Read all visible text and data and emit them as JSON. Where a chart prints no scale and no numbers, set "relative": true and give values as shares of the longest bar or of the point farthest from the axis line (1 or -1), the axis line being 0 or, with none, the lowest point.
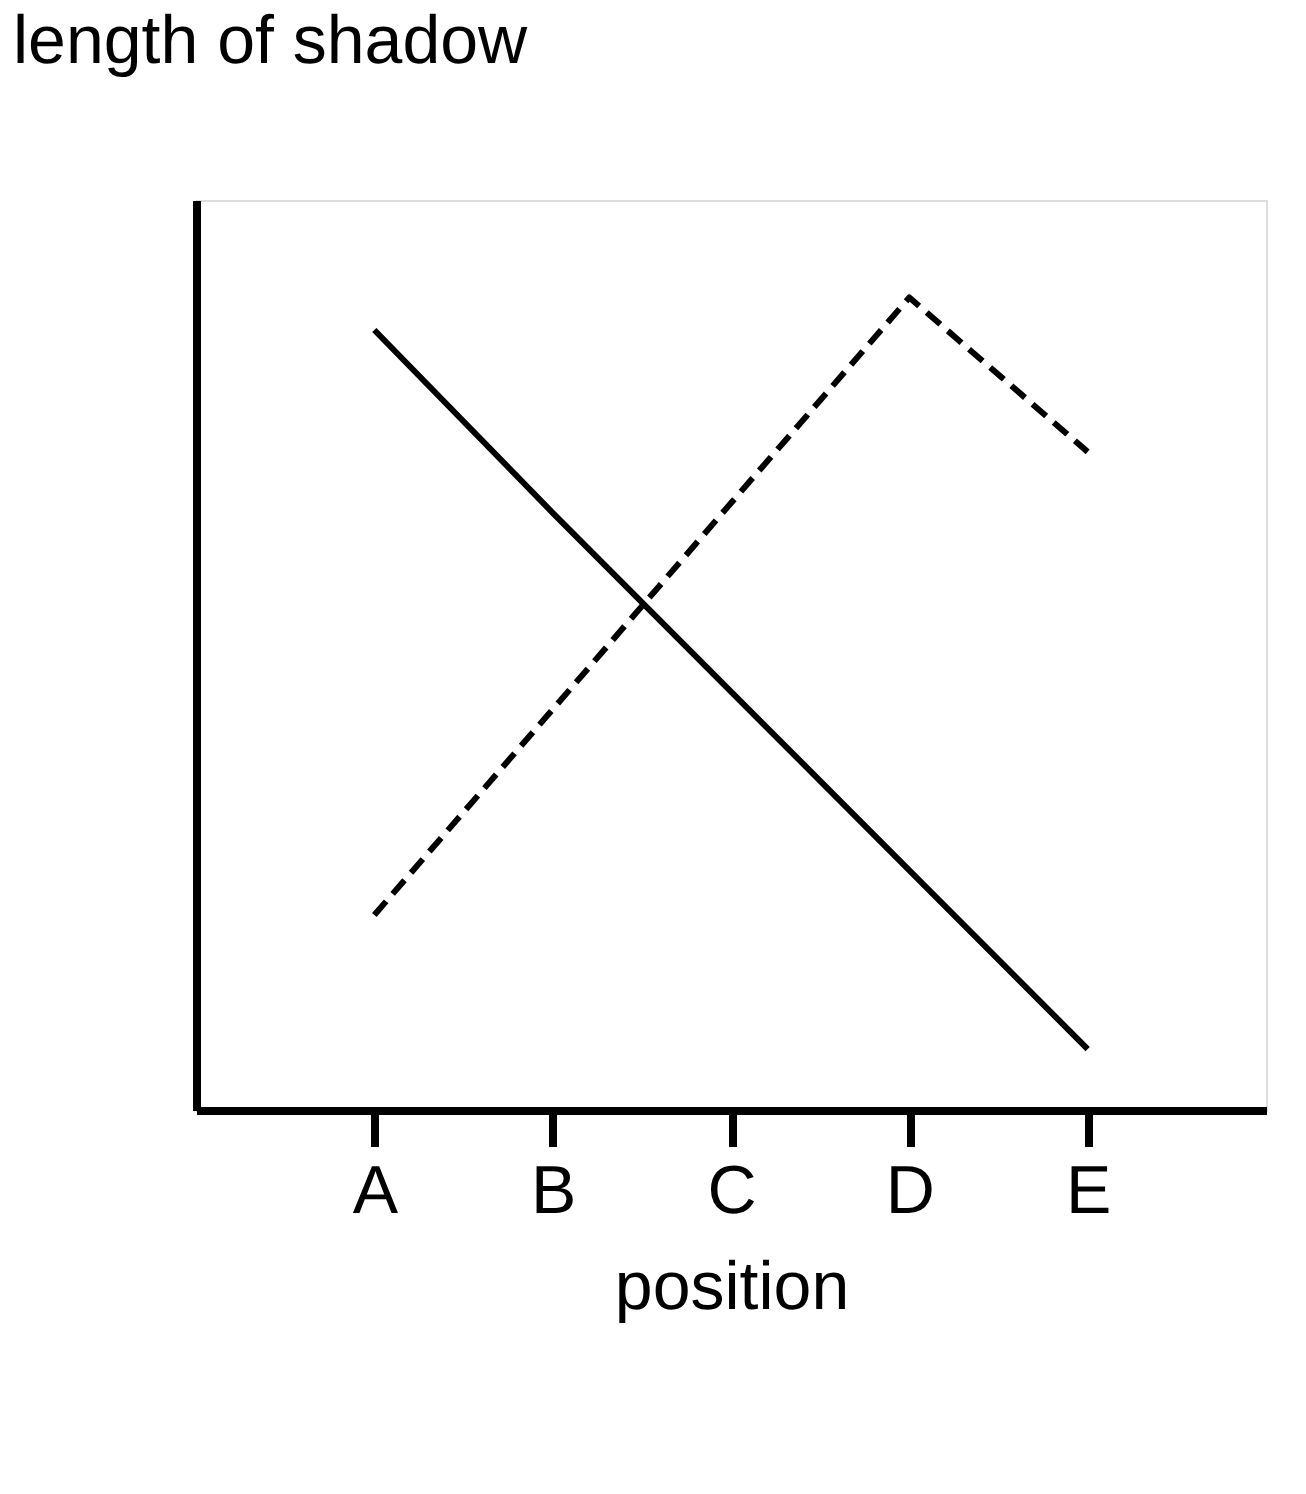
{
  "chart_data": {
    "type": "line",
    "relative": true,
    "ylabel": "length of shadow",
    "xlabel": "position",
    "categories": [
      "A",
      "B",
      "C",
      "D",
      "E"
    ],
    "grid": false,
    "marker": "none",
    "series": [
      {
        "color": "#000000",
        "line_style": "solid",
        "values": [
          0.96,
          0.735,
          0.515,
          0.295,
          0.075
        ]
      },
      {
        "color": "#000000",
        "line_style": "dashed",
        "values": [
          0.24,
          0.493,
          0.747,
          1,
          0.81
        ]
      }
    ]
  }
}
